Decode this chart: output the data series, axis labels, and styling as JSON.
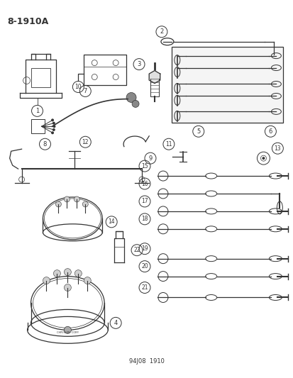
{
  "title": "8-1910A",
  "footer": "94J08  1910",
  "bg_color": "#ffffff",
  "fg_color": "#333333",
  "fig_width": 4.14,
  "fig_height": 5.33,
  "dpi": 100
}
